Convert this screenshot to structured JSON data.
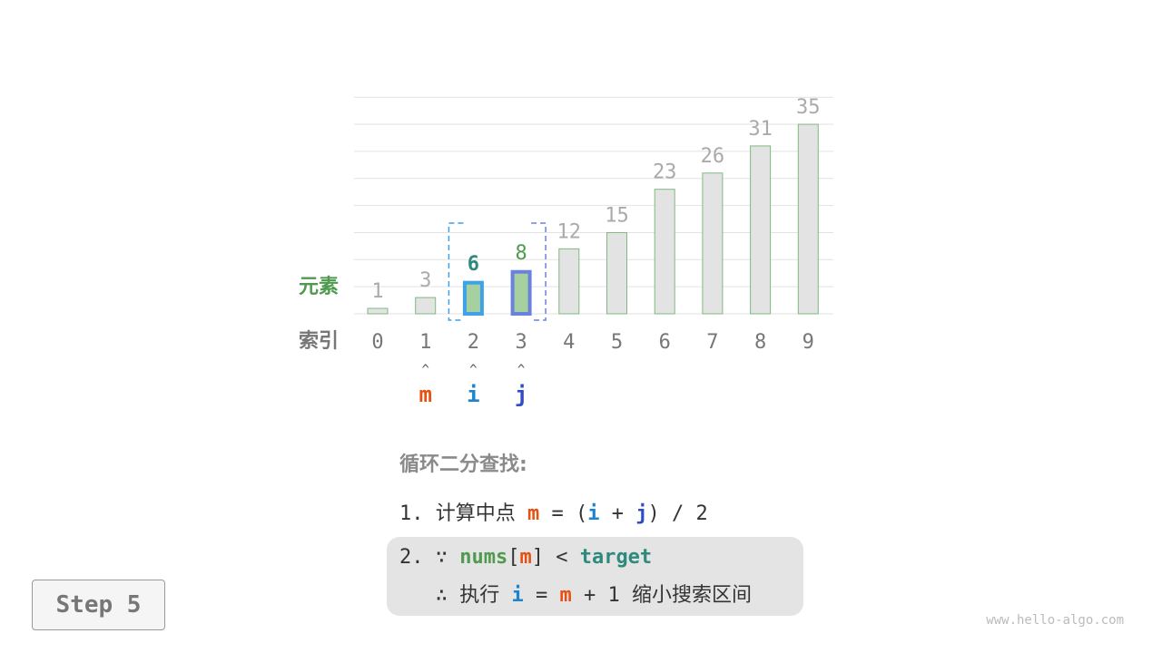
{
  "colors": {
    "m": "#e65012",
    "i": "#1c84cf",
    "j": "#2f4cc8",
    "green": "#4f9a4f",
    "teal": "#2e8a7c",
    "bar_fill": "#e3e3e3",
    "bar_stroke": "#7fb97f",
    "highlight_fill": "#a6d0a0",
    "gray_text": "#aaaaaa"
  },
  "diagram": {
    "row_label_elements": "元素",
    "row_label_index": "索引",
    "values": [
      1,
      3,
      6,
      8,
      12,
      15,
      23,
      26,
      31,
      35
    ],
    "indices": [
      "0",
      "1",
      "2",
      "3",
      "4",
      "5",
      "6",
      "7",
      "8",
      "9"
    ],
    "highlighted": [
      {
        "index": 2,
        "border": "#3da2e6",
        "label_color": "#2e8a7c"
      },
      {
        "index": 3,
        "border": "#6b82dc",
        "label_color": "#4f9a4f"
      }
    ],
    "search_interval": [
      2,
      3
    ],
    "pointers": [
      {
        "name": "m",
        "index": 1,
        "color": "#e65012"
      },
      {
        "name": "i",
        "index": 2,
        "color": "#1c84cf"
      },
      {
        "name": "j",
        "index": 3,
        "color": "#2f4cc8"
      }
    ],
    "pointer_arrow": "^"
  },
  "text": {
    "title": "循环二分查找:",
    "step1_prefix": "1. 计算中点 ",
    "m": "m",
    "i": "i",
    "j": "j",
    "step1_eq": " = (",
    "step1_plus": " + ",
    "step1_end": ") / 2",
    "step2_prefix": "2. ∵ ",
    "nums": "nums",
    "lb": "[",
    "rb": "] < ",
    "target": "target",
    "step3_prefix": "   ∴ 执行 ",
    "step3_eq": " = ",
    "step3_end": " + 1 缩小搜索区间"
  },
  "step_label": "Step 5",
  "watermark": "www.hello-algo.com"
}
